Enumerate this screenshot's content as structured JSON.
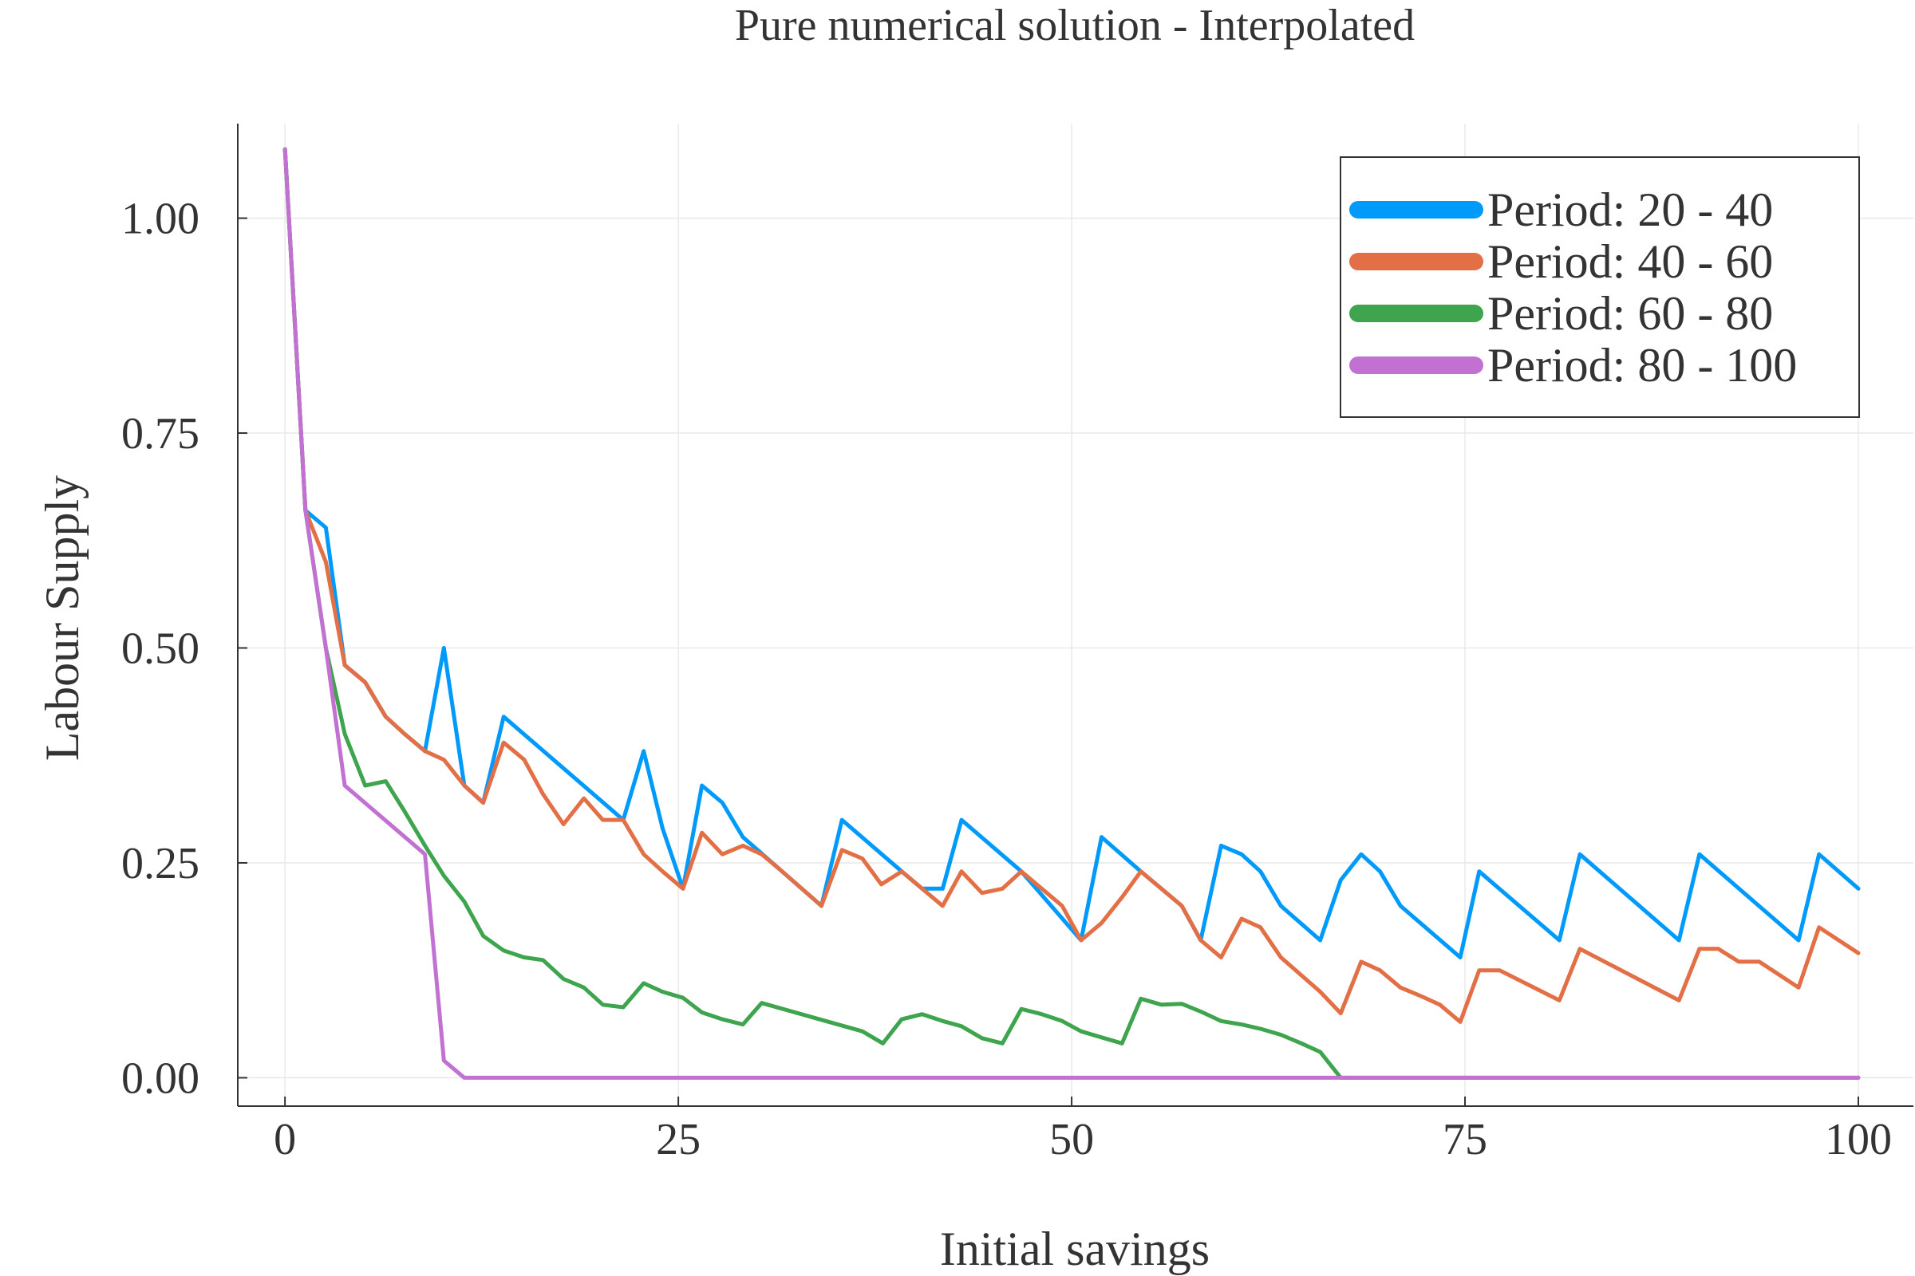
{
  "chart_data": {
    "type": "line",
    "title": "Pure numerical solution - Interpolated",
    "xlabel": "Initial savings",
    "ylabel": "Labour Supply",
    "xlim": [
      -3,
      103.5
    ],
    "ylim": [
      -0.033,
      1.11
    ],
    "xticks": [
      0,
      25,
      50,
      75,
      100
    ],
    "xtick_labels": [
      "0",
      "25",
      "50",
      "75",
      "100"
    ],
    "yticks": [
      0,
      0.25,
      0.5,
      0.75,
      1.0
    ],
    "ytick_labels": [
      "0.00",
      "0.25",
      "0.50",
      "0.75",
      "1.00"
    ],
    "grid": true,
    "legend_position": "top-right",
    "series": [
      {
        "name": "Period: 20 - 40",
        "color": "#009AFA",
        "x": [
          0,
          1.3,
          2.6,
          3.8,
          5.1,
          6.4,
          7.6,
          8.9,
          10.1,
          11.4,
          12.6,
          13.9,
          21.5,
          22.8,
          24.0,
          25.3,
          26.5,
          27.8,
          29.1,
          34.1,
          35.4,
          39.2,
          40.5,
          41.8,
          43.0,
          46.8,
          50.6,
          51.9,
          54.4,
          57.0,
          58.2,
          59.5,
          60.8,
          62.0,
          63.3,
          65.8,
          67.1,
          68.4,
          69.6,
          70.9,
          74.7,
          75.9,
          81.0,
          82.3,
          88.6,
          89.9,
          96.2,
          97.5,
          100.0
        ],
        "y": [
          1.08,
          0.66,
          0.64,
          0.48,
          0.46,
          0.42,
          0.4,
          0.38,
          0.5,
          0.34,
          0.32,
          0.42,
          0.3,
          0.38,
          0.29,
          0.22,
          0.34,
          0.32,
          0.28,
          0.2,
          0.3,
          0.24,
          0.22,
          0.22,
          0.3,
          0.24,
          0.16,
          0.28,
          0.24,
          0.2,
          0.16,
          0.27,
          0.26,
          0.24,
          0.2,
          0.16,
          0.23,
          0.26,
          0.24,
          0.2,
          0.14,
          0.24,
          0.16,
          0.26,
          0.16,
          0.26,
          0.16,
          0.26,
          0.22
        ]
      },
      {
        "name": "Period: 40 - 60",
        "color": "#E26F46",
        "x": [
          0,
          1.3,
          2.6,
          3.8,
          5.1,
          6.4,
          7.6,
          8.9,
          10.1,
          11.4,
          12.6,
          13.9,
          15.2,
          16.4,
          17.7,
          19.0,
          20.2,
          21.5,
          22.8,
          24.0,
          25.3,
          26.5,
          27.8,
          29.1,
          30.3,
          31.6,
          34.1,
          35.4,
          36.7,
          37.9,
          39.2,
          40.5,
          41.8,
          43.0,
          44.3,
          45.6,
          46.8,
          48.1,
          49.4,
          50.6,
          51.9,
          53.2,
          54.4,
          55.7,
          57.0,
          58.2,
          59.5,
          60.8,
          62.0,
          63.3,
          65.8,
          67.1,
          68.4,
          69.6,
          70.9,
          72.2,
          73.4,
          74.7,
          75.9,
          77.2,
          81.0,
          82.3,
          88.6,
          89.9,
          91.1,
          92.4,
          93.7,
          96.2,
          97.5,
          100.0
        ],
        "y": [
          1.08,
          0.66,
          0.6,
          0.48,
          0.46,
          0.42,
          0.4,
          0.38,
          0.37,
          0.34,
          0.32,
          0.39,
          0.37,
          0.33,
          0.295,
          0.325,
          0.3,
          0.3,
          0.26,
          0.24,
          0.22,
          0.285,
          0.26,
          0.27,
          0.26,
          0.24,
          0.2,
          0.265,
          0.255,
          0.225,
          0.24,
          0.22,
          0.2,
          0.24,
          0.215,
          0.22,
          0.24,
          0.22,
          0.2,
          0.16,
          0.18,
          0.21,
          0.24,
          0.22,
          0.2,
          0.16,
          0.14,
          0.185,
          0.175,
          0.14,
          0.1,
          0.075,
          0.135,
          0.125,
          0.105,
          0.095,
          0.085,
          0.065,
          0.125,
          0.125,
          0.09,
          0.15,
          0.09,
          0.15,
          0.15,
          0.135,
          0.135,
          0.105,
          0.175,
          0.145
        ]
      },
      {
        "name": "Period: 60 - 80",
        "color": "#3EA44E",
        "x": [
          0,
          1.3,
          2.6,
          3.8,
          5.1,
          6.4,
          7.6,
          8.9,
          10.1,
          11.4,
          12.6,
          13.9,
          15.2,
          16.4,
          17.7,
          19.0,
          20.2,
          21.5,
          22.8,
          24.0,
          25.3,
          26.5,
          27.8,
          29.1,
          30.3,
          36.7,
          38.0,
          39.2,
          40.5,
          41.8,
          43.0,
          44.3,
          45.6,
          46.8,
          48.1,
          49.4,
          50.6,
          51.9,
          53.2,
          54.4,
          55.7,
          57.0,
          58.2,
          59.5,
          60.8,
          62.0,
          63.3,
          64.6,
          65.8,
          67.1,
          100.0
        ],
        "y": [
          1.08,
          0.66,
          0.5,
          0.4,
          0.34,
          0.345,
          0.31,
          0.27,
          0.235,
          0.205,
          0.165,
          0.148,
          0.14,
          0.137,
          0.115,
          0.105,
          0.085,
          0.082,
          0.11,
          0.1,
          0.093,
          0.076,
          0.068,
          0.062,
          0.087,
          0.054,
          0.04,
          0.068,
          0.074,
          0.066,
          0.06,
          0.046,
          0.04,
          0.08,
          0.074,
          0.066,
          0.054,
          0.047,
          0.04,
          0.092,
          0.085,
          0.086,
          0.077,
          0.066,
          0.062,
          0.057,
          0.05,
          0.04,
          0.03,
          0.0,
          0.0
        ]
      },
      {
        "name": "Period: 80 - 100",
        "color": "#C271D2",
        "x": [
          0,
          1.3,
          2.6,
          3.8,
          8.9,
          10.1,
          11.4,
          100.0
        ],
        "y": [
          1.08,
          0.66,
          0.5,
          0.34,
          0.26,
          0.02,
          0.0,
          0.0
        ]
      }
    ]
  }
}
